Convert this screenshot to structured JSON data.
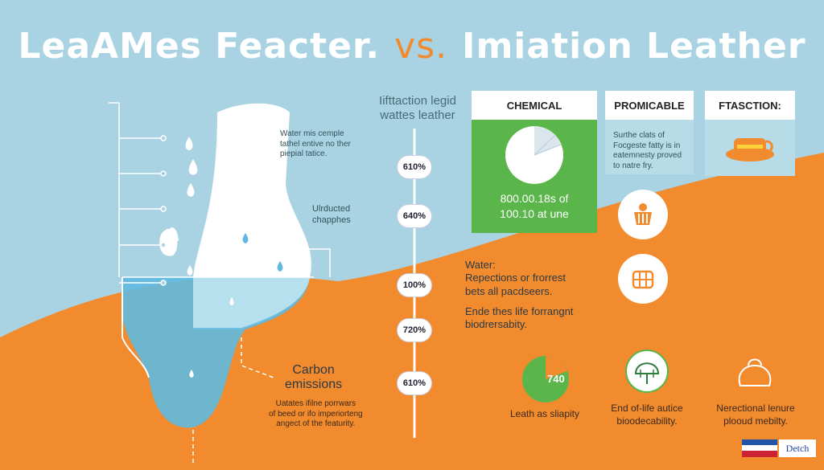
{
  "title": {
    "left": "LeaAMes Feacter.",
    "vs": "vs.",
    "right": "Imiation Leather"
  },
  "left_notes": {
    "n1": [
      "Water mis cemple",
      "tathel entive no ther",
      "piepial tatice."
    ],
    "n2": [
      "Ulrducted",
      "chapphes"
    ],
    "carbon": [
      "Carbon",
      "emissions"
    ],
    "bottom": [
      "Uatates ifilne porrwars",
      "of beed or ifo imperiorteng",
      "angect of the featurity."
    ]
  },
  "center_head": [
    "Iifttaction legid",
    "wattes leather"
  ],
  "scale": [
    "610%",
    "640%",
    "100%",
    "720%",
    "610%"
  ],
  "cards": {
    "chemical": {
      "head": "CHEMICAL",
      "line1": "800.00.18s of",
      "line2": "100.10 at une"
    },
    "prominent": {
      "head": "PROMICABLE",
      "text": [
        "Surthe clats of",
        "Focgeste fatty is in",
        "eatemnesty proved",
        "to natre fry."
      ]
    },
    "fraction": {
      "head": "FTASCTION:"
    }
  },
  "mid_text": {
    "water": "Water:",
    "l1": "Repections or frorrest",
    "l2": "bets all pacdseers.",
    "l3": "Ende thes life forrangnt",
    "l4": "biodrersabity."
  },
  "badge_value": "740",
  "footers": {
    "f1": "Leath as sliapity",
    "f2": [
      "End of-life autice",
      "bioodecability."
    ],
    "f3": [
      "Nerectional lenure",
      "plooud mebilty."
    ]
  },
  "lang": "Detch",
  "colors": {
    "sky": "#a9d3e3",
    "orange": "#f28a2e",
    "green": "#5ab54b",
    "water": "#5fb9e0"
  }
}
